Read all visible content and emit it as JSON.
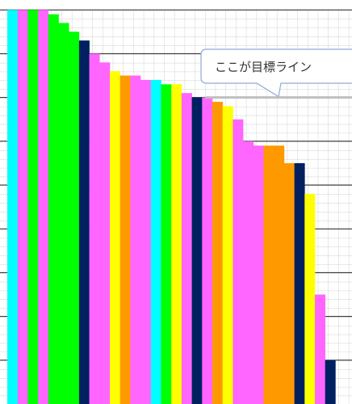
{
  "chart_data": {
    "type": "bar",
    "title": "",
    "xlabel": "",
    "ylabel": "",
    "ylim": [
      0,
      9
    ],
    "grid": true,
    "target_line": 7,
    "annotation": "ここが目標ライン",
    "values": [
      9.0,
      9.0,
      9.0,
      9.0,
      8.9,
      8.7,
      8.5,
      8.3,
      8.0,
      7.8,
      7.6,
      7.5,
      7.5,
      7.4,
      7.4,
      7.3,
      7.3,
      7.1,
      7.0,
      7.0,
      6.9,
      6.8,
      6.5,
      6.0,
      5.9,
      5.9,
      5.9,
      5.5,
      5.5,
      4.8,
      2.5,
      1.0
    ],
    "bar_colors": [
      "#00ffff",
      "#ff66ff",
      "#00ff00",
      "#ff66ff",
      "#00ff00",
      "#00ff00",
      "#00ff00",
      "#002060",
      "#ff66ff",
      "#ff66ff",
      "#ffff00",
      "#ff9900",
      "#ff66ff",
      "#ff66ff",
      "#00ffff",
      "#00ff00",
      "#ffff00",
      "#ff66ff",
      "#002060",
      "#ff66ff",
      "#ff9900",
      "#ffff00",
      "#ff66ff",
      "#ff66ff",
      "#ff66ff",
      "#ff9900",
      "#ff9900",
      "#ff9900",
      "#002060",
      "#ffff00",
      "#ff66ff",
      "#002060"
    ]
  }
}
